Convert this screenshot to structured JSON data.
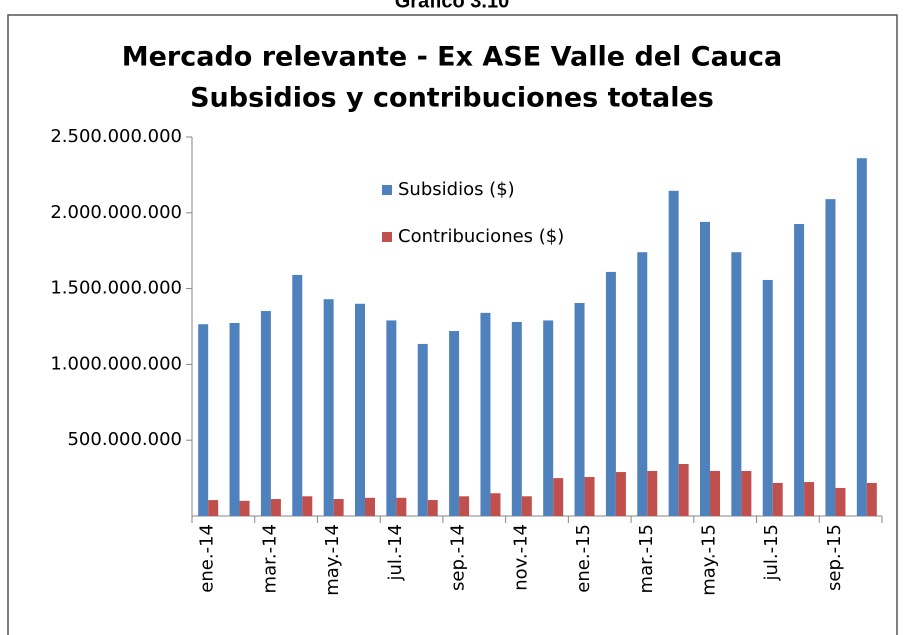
{
  "chart_data": {
    "type": "bar",
    "caption": "Gráfico 3.10",
    "title": "Mercado relevante - Ex ASE Valle del Cauca",
    "subtitle": "Subsidios y contribuciones totales",
    "categories": [
      "ene.-14",
      null,
      "mar.-14",
      null,
      "may.-14",
      null,
      "jul.-14",
      null,
      "sep.-14",
      null,
      "nov.-14",
      null,
      "ene.-15",
      null,
      "mar.-15",
      null,
      "may.-15",
      null,
      "jul.-15",
      null,
      "sep.-15",
      null
    ],
    "series": [
      {
        "name": "Subsidios ($)",
        "color": "#4f81bd",
        "values": [
          1265000000,
          1273000000,
          1352000000,
          1590000000,
          1430000000,
          1400000000,
          1290000000,
          1135000000,
          1220000000,
          1340000000,
          1280000000,
          1290000000,
          1405000000,
          1610000000,
          1740000000,
          2145000000,
          1940000000,
          1740000000,
          1557000000,
          1926000000,
          2090000000,
          2360000000
        ]
      },
      {
        "name": "Contribuciones ($)",
        "color": "#c0504d",
        "values": [
          105000000,
          100000000,
          112000000,
          130000000,
          112000000,
          120000000,
          120000000,
          105000000,
          130000000,
          150000000,
          130000000,
          250000000,
          257000000,
          290000000,
          297000000,
          343000000,
          297000000,
          297000000,
          218000000,
          224000000,
          185000000,
          218000000
        ]
      }
    ],
    "ylim": [
      0,
      2500000000
    ],
    "yticks": [
      {
        "value": 500000000,
        "label": "500.000.000"
      },
      {
        "value": 1000000000,
        "label": "1.000.000.000"
      },
      {
        "value": 1500000000,
        "label": "1.500.000.000"
      },
      {
        "value": 2000000000,
        "label": "2.000.000.000"
      },
      {
        "value": 2500000000,
        "label": "2.500.000.000"
      }
    ],
    "grid": false,
    "legend": "top-center"
  }
}
